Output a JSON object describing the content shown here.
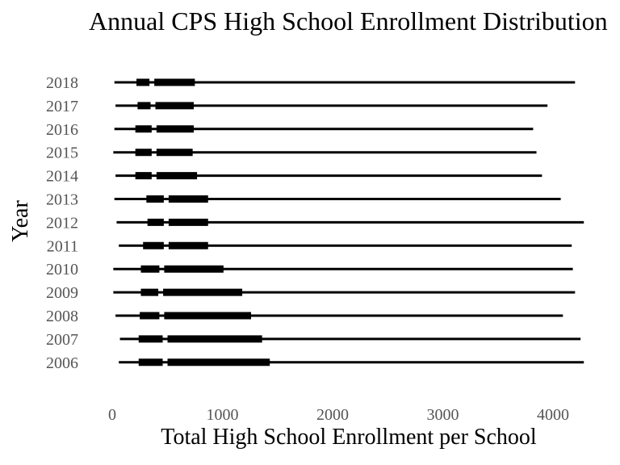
{
  "chart_data": {
    "type": "boxplot",
    "title": "Annual CPS High School Enrollment Distribution",
    "xlabel": "Total High School Enrollment per School",
    "ylabel": "Year",
    "xlim": [
      0,
      4300
    ],
    "x_ticks": [
      0,
      1000,
      2000,
      3000,
      4000
    ],
    "x_tick_labels": [
      "0",
      "1000",
      "2000",
      "3000",
      "4000"
    ],
    "grid": false,
    "categories": [
      "2006",
      "2007",
      "2008",
      "2009",
      "2010",
      "2011",
      "2012",
      "2013",
      "2014",
      "2015",
      "2016",
      "2017",
      "2018"
    ],
    "series": [
      {
        "year": "2006",
        "min": 60,
        "q1": 240,
        "median": 480,
        "q3": 1430,
        "max": 4280
      },
      {
        "year": "2007",
        "min": 70,
        "q1": 240,
        "median": 480,
        "q3": 1360,
        "max": 4250
      },
      {
        "year": "2008",
        "min": 30,
        "q1": 250,
        "median": 450,
        "q3": 1260,
        "max": 4090
      },
      {
        "year": "2009",
        "min": 10,
        "q1": 260,
        "median": 440,
        "q3": 1180,
        "max": 4200
      },
      {
        "year": "2010",
        "min": 10,
        "q1": 260,
        "median": 450,
        "q3": 1010,
        "max": 4180
      },
      {
        "year": "2011",
        "min": 60,
        "q1": 280,
        "median": 490,
        "q3": 870,
        "max": 4170
      },
      {
        "year": "2012",
        "min": 40,
        "q1": 320,
        "median": 490,
        "q3": 870,
        "max": 4280
      },
      {
        "year": "2013",
        "min": 20,
        "q1": 310,
        "median": 490,
        "q3": 870,
        "max": 4070
      },
      {
        "year": "2014",
        "min": 30,
        "q1": 210,
        "median": 380,
        "q3": 770,
        "max": 3900
      },
      {
        "year": "2015",
        "min": 10,
        "q1": 210,
        "median": 380,
        "q3": 730,
        "max": 3850
      },
      {
        "year": "2016",
        "min": 20,
        "q1": 210,
        "median": 380,
        "q3": 740,
        "max": 3820
      },
      {
        "year": "2017",
        "min": 30,
        "q1": 230,
        "median": 370,
        "q3": 740,
        "max": 3950
      },
      {
        "year": "2018",
        "min": 20,
        "q1": 220,
        "median": 360,
        "q3": 750,
        "max": 4200
      }
    ]
  }
}
